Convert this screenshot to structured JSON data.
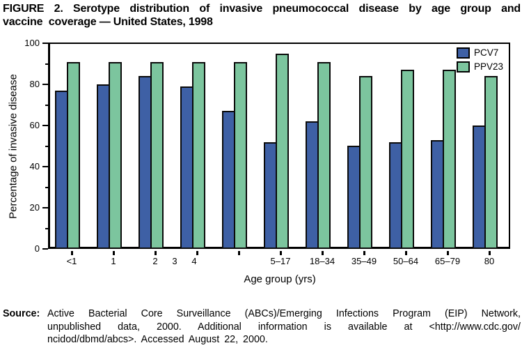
{
  "title": {
    "line1": "FIGURE 2. Serotype distribution of invasive pneumococcal disease by age group and",
    "line2": "vaccine  coverage — United States, 1998"
  },
  "chart_data": {
    "type": "bar",
    "categories": [
      "<1",
      "1",
      "2",
      "3",
      "4",
      "5–17",
      "18–34",
      "35–49",
      "50–64",
      "65–79",
      "80"
    ],
    "series": [
      {
        "name": "PCV7",
        "color": "#3E60A5",
        "values": [
          77,
          80,
          84,
          79,
          67,
          52,
          62,
          50,
          52,
          53,
          60
        ]
      },
      {
        "name": "PPV23",
        "color": "#7CC59E",
        "values": [
          91,
          91,
          91,
          91,
          91,
          95,
          91,
          84,
          87,
          87,
          84
        ]
      }
    ],
    "xlabel": "Age group (yrs)",
    "ylabel": "Percentage of invasive disease",
    "ylim": [
      0,
      100
    ],
    "yticks": [
      0,
      20,
      40,
      60,
      80,
      100
    ],
    "minor_yticks": [
      10,
      30,
      50,
      70,
      90
    ],
    "legend_position": "top-right inside plot",
    "grid": false,
    "bar_outline_color": "#000000",
    "background_color": "#FFFFFF"
  },
  "source": {
    "label": "Source:",
    "lines": [
      "Active Bacterial Core Surveillance (ABCs)/Emerging Infections Program (EIP) Network,",
      "unpublished data, 2000. Additional information is available at <http://www.cdc.gov/",
      "ncidod/dbmd/abcs>.  Accessed  August 22, 2000."
    ]
  }
}
